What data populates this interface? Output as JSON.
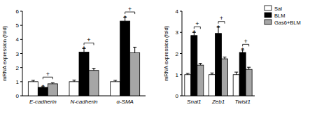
{
  "chart_data": [
    {
      "type": "bar",
      "y_label": "mRNA expression (fold)",
      "categories": [
        "E-cadherin",
        "N-cadherin",
        "α-SMA"
      ],
      "series": [
        {
          "name": "Sal",
          "color": "#ffffff",
          "values": [
            1.0,
            1.0,
            1.0
          ],
          "errors": [
            0.1,
            0.12,
            0.1
          ]
        },
        {
          "name": "BLM",
          "color": "#000000",
          "values": [
            0.6,
            3.1,
            5.3
          ],
          "errors": [
            0.05,
            0.25,
            0.25
          ]
        },
        {
          "name": "Gas6+BLM",
          "color": "#a6a6a6",
          "values": [
            0.85,
            1.8,
            3.05
          ],
          "errors": [
            0.08,
            0.15,
            0.4
          ]
        }
      ],
      "ylim": [
        0,
        6
      ],
      "yticks": [
        0,
        1,
        2,
        3,
        4,
        5,
        6
      ],
      "annotations": [
        {
          "text": "*",
          "category": 0,
          "series": [
            1
          ]
        },
        {
          "text": "+",
          "category": 0,
          "series": [
            1,
            2
          ]
        },
        {
          "text": "*",
          "category": 1,
          "series": [
            1
          ]
        },
        {
          "text": "+",
          "category": 1,
          "series": [
            1,
            2
          ]
        },
        {
          "text": "*",
          "category": 2,
          "series": [
            1
          ]
        },
        {
          "text": "+",
          "category": 2,
          "series": [
            1,
            2
          ]
        }
      ]
    },
    {
      "type": "bar",
      "y_label": "mRNA expression (fold)",
      "categories": [
        "Snai1",
        "Zeb1",
        "Twist1"
      ],
      "series": [
        {
          "name": "Sal",
          "color": "#ffffff",
          "values": [
            1.0,
            1.0,
            1.0
          ],
          "errors": [
            0.06,
            0.08,
            0.12
          ]
        },
        {
          "name": "BLM",
          "color": "#000000",
          "values": [
            2.85,
            2.95,
            2.05
          ],
          "errors": [
            0.15,
            0.3,
            0.12
          ]
        },
        {
          "name": "Gas6+BLM",
          "color": "#a6a6a6",
          "values": [
            1.45,
            1.75,
            1.25
          ],
          "errors": [
            0.08,
            0.08,
            0.1
          ]
        }
      ],
      "ylim": [
        0,
        4
      ],
      "yticks": [
        0,
        1,
        2,
        3,
        4
      ],
      "legend": "right",
      "annotations": [
        {
          "text": "*",
          "category": 0,
          "series": [
            1
          ]
        },
        {
          "text": "+",
          "category": 0,
          "series": [
            1,
            2
          ]
        },
        {
          "text": "*",
          "category": 1,
          "series": [
            1
          ]
        },
        {
          "text": "+",
          "category": 1,
          "series": [
            1,
            2
          ]
        },
        {
          "text": "*",
          "category": 2,
          "series": [
            1
          ]
        },
        {
          "text": "+",
          "category": 2,
          "series": [
            1,
            2
          ]
        }
      ]
    }
  ]
}
